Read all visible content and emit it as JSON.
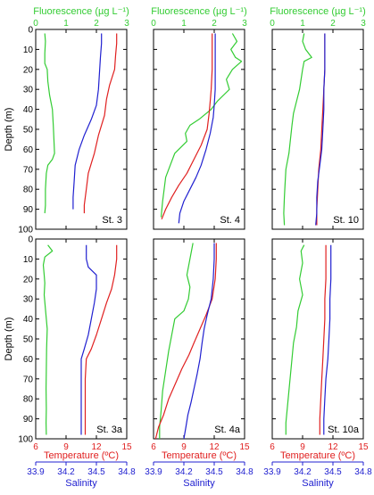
{
  "labels": {
    "fluorescence_axis": "Fluorescence (µg L⁻¹)",
    "depth_axis": "Depth (m)",
    "temperature_axis": "Temperature (ºC)",
    "salinity_axis": "Salinity"
  },
  "colors": {
    "fluorescence": "#33cc33",
    "temperature": "#e02020",
    "salinity": "#2020d0",
    "frame": "#000000"
  },
  "chart_data": {
    "type": "line",
    "depth_range": [
      0,
      100
    ],
    "depth_ticks": [
      0,
      10,
      20,
      30,
      40,
      50,
      60,
      70,
      80,
      90,
      100
    ],
    "depth_axis_inverted": true,
    "fluorescence_range": [
      0,
      3
    ],
    "fluorescence_ticks": [
      0,
      1,
      2,
      3
    ],
    "temperature_range": [
      6,
      15
    ],
    "temperature_ticks": [
      6,
      9,
      12,
      15
    ],
    "salinity_range": [
      33.9,
      34.8
    ],
    "salinity_ticks": [
      33.9,
      34.2,
      34.5,
      34.8
    ],
    "panels": [
      {
        "station": "St. 3",
        "fluorescence": [
          [
            0.3,
            2
          ],
          [
            0.32,
            6
          ],
          [
            0.3,
            12
          ],
          [
            0.3,
            17
          ],
          [
            0.38,
            20
          ],
          [
            0.4,
            26
          ],
          [
            0.46,
            33
          ],
          [
            0.55,
            40
          ],
          [
            0.58,
            48
          ],
          [
            0.6,
            55
          ],
          [
            0.62,
            62
          ],
          [
            0.55,
            65
          ],
          [
            0.4,
            68
          ],
          [
            0.35,
            72
          ],
          [
            0.32,
            80
          ],
          [
            0.32,
            88
          ],
          [
            0.3,
            92
          ]
        ],
        "temperature": [
          [
            14,
            2
          ],
          [
            14,
            7
          ],
          [
            13.9,
            13
          ],
          [
            13.8,
            20
          ],
          [
            13.3,
            28
          ],
          [
            13,
            35
          ],
          [
            12.8,
            43
          ],
          [
            12.2,
            53
          ],
          [
            11.8,
            62
          ],
          [
            11.2,
            72
          ],
          [
            11,
            80
          ],
          [
            10.8,
            88
          ],
          [
            10.8,
            92
          ]
        ],
        "salinity": [
          [
            34.55,
            2
          ],
          [
            34.55,
            7
          ],
          [
            34.54,
            14
          ],
          [
            34.53,
            22
          ],
          [
            34.52,
            30
          ],
          [
            34.5,
            38
          ],
          [
            34.45,
            45
          ],
          [
            34.38,
            53
          ],
          [
            34.33,
            60
          ],
          [
            34.29,
            68
          ],
          [
            34.28,
            76
          ],
          [
            34.27,
            84
          ],
          [
            34.27,
            90
          ]
        ]
      },
      {
        "station": "St. 4",
        "fluorescence": [
          [
            2.6,
            2
          ],
          [
            2.75,
            6
          ],
          [
            2.55,
            10
          ],
          [
            2.7,
            14
          ],
          [
            2.9,
            16
          ],
          [
            2.6,
            20
          ],
          [
            2.4,
            25
          ],
          [
            2.5,
            30
          ],
          [
            2.1,
            36
          ],
          [
            1.9,
            40
          ],
          [
            1.5,
            45
          ],
          [
            1.2,
            48
          ],
          [
            1.05,
            52
          ],
          [
            1.1,
            56
          ],
          [
            0.7,
            62
          ],
          [
            0.55,
            68
          ],
          [
            0.4,
            74
          ],
          [
            0.35,
            80
          ],
          [
            0.3,
            86
          ],
          [
            0.25,
            94
          ]
        ],
        "temperature": [
          [
            11.8,
            2
          ],
          [
            11.8,
            10
          ],
          [
            11.8,
            20
          ],
          [
            11.7,
            30
          ],
          [
            11.6,
            36
          ],
          [
            11.5,
            42
          ],
          [
            11.3,
            50
          ],
          [
            10.7,
            58
          ],
          [
            10,
            65
          ],
          [
            9.3,
            72
          ],
          [
            8.5,
            78
          ],
          [
            7.8,
            84
          ],
          [
            7.2,
            90
          ],
          [
            6.8,
            95
          ]
        ],
        "salinity": [
          [
            34.51,
            2
          ],
          [
            34.51,
            10
          ],
          [
            34.51,
            20
          ],
          [
            34.51,
            30
          ],
          [
            34.5,
            38
          ],
          [
            34.49,
            44
          ],
          [
            34.46,
            52
          ],
          [
            34.42,
            60
          ],
          [
            34.37,
            68
          ],
          [
            34.32,
            74
          ],
          [
            34.26,
            80
          ],
          [
            34.2,
            86
          ],
          [
            34.16,
            92
          ],
          [
            34.15,
            97
          ]
        ]
      },
      {
        "station": "St. 10",
        "fluorescence": [
          [
            1.05,
            2
          ],
          [
            1.0,
            6
          ],
          [
            1.1,
            10
          ],
          [
            1.3,
            14
          ],
          [
            1.05,
            16
          ],
          [
            1.0,
            20
          ],
          [
            0.95,
            25
          ],
          [
            0.9,
            30
          ],
          [
            0.8,
            36
          ],
          [
            0.7,
            42
          ],
          [
            0.65,
            48
          ],
          [
            0.6,
            55
          ],
          [
            0.55,
            62
          ],
          [
            0.45,
            70
          ],
          [
            0.42,
            78
          ],
          [
            0.4,
            84
          ],
          [
            0.38,
            92
          ],
          [
            0.4,
            98
          ]
        ],
        "temperature": [
          [
            11.2,
            2
          ],
          [
            11.2,
            10
          ],
          [
            11.2,
            20
          ],
          [
            11.1,
            30
          ],
          [
            11,
            40
          ],
          [
            10.9,
            50
          ],
          [
            10.8,
            60
          ],
          [
            10.6,
            70
          ],
          [
            10.5,
            80
          ],
          [
            10.4,
            90
          ],
          [
            10.4,
            98
          ]
        ],
        "salinity": [
          [
            34.42,
            2
          ],
          [
            34.42,
            10
          ],
          [
            34.42,
            20
          ],
          [
            34.41,
            30
          ],
          [
            34.41,
            40
          ],
          [
            34.4,
            50
          ],
          [
            34.39,
            60
          ],
          [
            34.37,
            68
          ],
          [
            34.35,
            76
          ],
          [
            34.34,
            84
          ],
          [
            34.34,
            92
          ],
          [
            34.33,
            98
          ]
        ]
      },
      {
        "station": "St. 3a",
        "fluorescence": [
          [
            0.4,
            3
          ],
          [
            0.55,
            6
          ],
          [
            0.3,
            9
          ],
          [
            0.25,
            13
          ],
          [
            0.28,
            18
          ],
          [
            0.3,
            22
          ],
          [
            0.28,
            28
          ],
          [
            0.32,
            35
          ],
          [
            0.38,
            45
          ],
          [
            0.36,
            55
          ],
          [
            0.35,
            65
          ],
          [
            0.34,
            75
          ],
          [
            0.35,
            85
          ],
          [
            0.34,
            92
          ],
          [
            0.35,
            98
          ]
        ],
        "temperature": [
          [
            14,
            3
          ],
          [
            14,
            10
          ],
          [
            13.8,
            18
          ],
          [
            13.5,
            25
          ],
          [
            13,
            32
          ],
          [
            12.5,
            40
          ],
          [
            12,
            48
          ],
          [
            11.5,
            55
          ],
          [
            11,
            60
          ],
          [
            10.9,
            70
          ],
          [
            10.9,
            80
          ],
          [
            10.9,
            90
          ],
          [
            10.9,
            98
          ]
        ],
        "salinity": [
          [
            34.4,
            3
          ],
          [
            34.4,
            10
          ],
          [
            34.42,
            14
          ],
          [
            34.5,
            18
          ],
          [
            34.5,
            25
          ],
          [
            34.48,
            32
          ],
          [
            34.45,
            40
          ],
          [
            34.42,
            48
          ],
          [
            34.38,
            55
          ],
          [
            34.35,
            60
          ],
          [
            34.35,
            70
          ],
          [
            34.35,
            80
          ],
          [
            34.35,
            90
          ],
          [
            34.35,
            98
          ]
        ]
      },
      {
        "station": "St. 4a",
        "fluorescence": [
          [
            1.3,
            2
          ],
          [
            1.2,
            10
          ],
          [
            1.1,
            18
          ],
          [
            1.2,
            24
          ],
          [
            1.15,
            30
          ],
          [
            1.0,
            36
          ],
          [
            0.7,
            40
          ],
          [
            0.6,
            48
          ],
          [
            0.5,
            56
          ],
          [
            0.4,
            66
          ],
          [
            0.3,
            76
          ],
          [
            0.25,
            86
          ],
          [
            0.2,
            94
          ],
          [
            0.2,
            100
          ]
        ],
        "temperature": [
          [
            12.2,
            2
          ],
          [
            12.2,
            10
          ],
          [
            12.1,
            20
          ],
          [
            11.8,
            30
          ],
          [
            11.2,
            38
          ],
          [
            10.6,
            45
          ],
          [
            10,
            52
          ],
          [
            9.5,
            58
          ],
          [
            8.8,
            65
          ],
          [
            8.2,
            72
          ],
          [
            7.5,
            80
          ],
          [
            7,
            88
          ],
          [
            6.5,
            94
          ],
          [
            6.2,
            100
          ]
        ],
        "salinity": [
          [
            34.5,
            2
          ],
          [
            34.5,
            10
          ],
          [
            34.49,
            20
          ],
          [
            34.47,
            30
          ],
          [
            34.43,
            38
          ],
          [
            34.4,
            45
          ],
          [
            34.38,
            52
          ],
          [
            34.36,
            60
          ],
          [
            34.33,
            68
          ],
          [
            34.3,
            75
          ],
          [
            34.27,
            82
          ],
          [
            34.24,
            88
          ],
          [
            34.22,
            94
          ],
          [
            34.2,
            100
          ]
        ]
      },
      {
        "station": "St. 10a",
        "fluorescence": [
          [
            1.05,
            3
          ],
          [
            0.95,
            6
          ],
          [
            1.0,
            12
          ],
          [
            0.9,
            20
          ],
          [
            1.0,
            28
          ],
          [
            0.85,
            36
          ],
          [
            0.8,
            44
          ],
          [
            0.7,
            52
          ],
          [
            0.65,
            60
          ],
          [
            0.6,
            68
          ],
          [
            0.55,
            76
          ],
          [
            0.5,
            84
          ],
          [
            0.45,
            92
          ],
          [
            0.45,
            98
          ]
        ],
        "temperature": [
          [
            11.3,
            3
          ],
          [
            11.3,
            10
          ],
          [
            11.3,
            20
          ],
          [
            11.2,
            30
          ],
          [
            11.2,
            40
          ],
          [
            11.1,
            50
          ],
          [
            11,
            60
          ],
          [
            10.9,
            70
          ],
          [
            10.8,
            80
          ],
          [
            10.7,
            90
          ],
          [
            10.7,
            98
          ]
        ],
        "salinity": [
          [
            34.48,
            3
          ],
          [
            34.48,
            10
          ],
          [
            34.48,
            20
          ],
          [
            34.47,
            30
          ],
          [
            34.47,
            40
          ],
          [
            34.46,
            50
          ],
          [
            34.45,
            60
          ],
          [
            34.43,
            70
          ],
          [
            34.42,
            80
          ],
          [
            34.41,
            90
          ],
          [
            34.41,
            98
          ]
        ]
      }
    ]
  }
}
